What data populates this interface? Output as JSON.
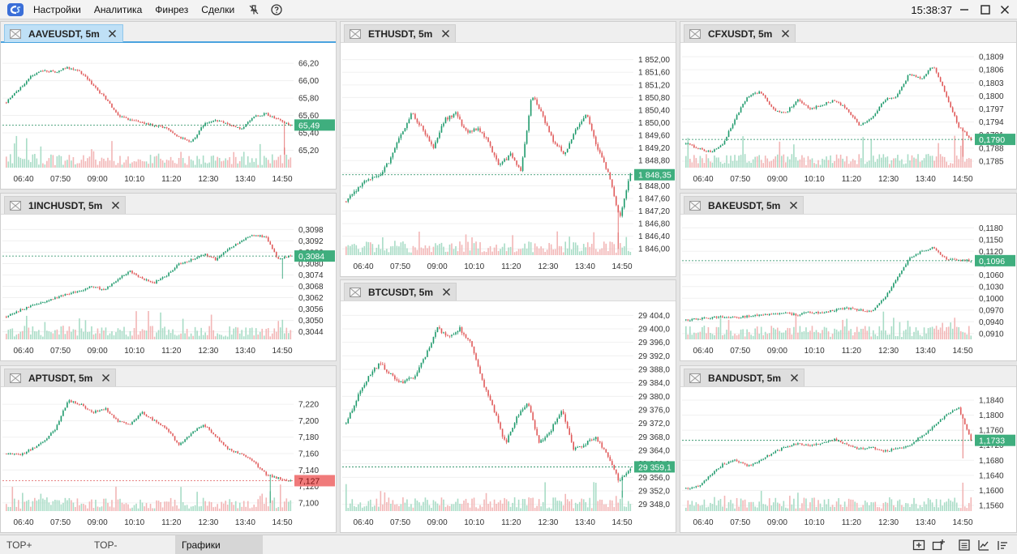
{
  "menu": {
    "items": [
      "Настройки",
      "Аналитика",
      "Финрез",
      "Сделки"
    ],
    "clock": "15:38:37"
  },
  "colors": {
    "up": "#1e9a6c",
    "down": "#e05a5a",
    "vol_up": "#a8dcc6",
    "vol_down": "#f2b6b6",
    "last_up_bg": "#3fae7e",
    "last_down_bg": "#f07a7a",
    "active_tab": "#bfe0f6"
  },
  "time_labels": [
    "06:40",
    "07:50",
    "09:00",
    "10:10",
    "11:20",
    "12:30",
    "13:40",
    "14:50"
  ],
  "panels": [
    {
      "id": "aave",
      "title": "AAVEUSDT, 5m",
      "active": true,
      "chart_data": {
        "type": "candlestick",
        "y_ticks": [
          "66,20",
          "66,00",
          "65,80",
          "65,60",
          "65,40",
          "65,20"
        ],
        "y_tick_values": [
          66.2,
          66.0,
          65.8,
          65.6,
          65.4,
          65.2
        ],
        "ylim": [
          65.0,
          66.35
        ],
        "last_price": "65,49",
        "last_value": 65.49,
        "last_dir": "up",
        "path": [
          65.75,
          65.9,
          66.05,
          66.12,
          66.1,
          66.15,
          66.1,
          65.95,
          65.8,
          65.6,
          65.55,
          65.52,
          65.48,
          65.45,
          65.35,
          65.3,
          65.5,
          65.55,
          65.5,
          65.45,
          65.58,
          65.62,
          65.55,
          65.48
        ],
        "spikes": [
          {
            "at": 0.98,
            "to": 65.15
          }
        ]
      }
    },
    {
      "id": "1inch",
      "title": "1INCHUSDT, 5m",
      "active": false,
      "chart_data": {
        "type": "candlestick",
        "y_ticks": [
          "0,3098",
          "0,3092",
          "0,3086",
          "0,3080",
          "0,3074",
          "0,3068",
          "0,3062",
          "0,3056",
          "0,3050",
          "0,3044"
        ],
        "y_tick_values": [
          0.3098,
          0.3092,
          0.3086,
          0.308,
          0.3074,
          0.3068,
          0.3062,
          0.3056,
          0.305,
          0.3044
        ],
        "ylim": [
          0.304,
          0.3102
        ],
        "last_price": "0,3084",
        "last_value": 0.3084,
        "last_dir": "up",
        "path": [
          0.3052,
          0.3055,
          0.3058,
          0.306,
          0.3062,
          0.3064,
          0.3066,
          0.3068,
          0.3066,
          0.3072,
          0.3076,
          0.3072,
          0.307,
          0.3074,
          0.308,
          0.3082,
          0.3085,
          0.3082,
          0.3088,
          0.3092,
          0.3095,
          0.3094,
          0.3082,
          0.3084
        ],
        "spikes": [
          {
            "at": 0.97,
            "to": 0.3072
          }
        ]
      }
    },
    {
      "id": "apt",
      "title": "APTUSDT, 5m",
      "active": false,
      "chart_data": {
        "type": "candlestick",
        "y_ticks": [
          "7,220",
          "7,200",
          "7,180",
          "7,160",
          "7,140",
          "7,120",
          "7,100"
        ],
        "y_tick_values": [
          7.22,
          7.2,
          7.18,
          7.16,
          7.14,
          7.12,
          7.1
        ],
        "ylim": [
          7.09,
          7.232
        ],
        "last_price": "7,127",
        "last_value": 7.127,
        "last_dir": "down",
        "path": [
          7.16,
          7.158,
          7.165,
          7.175,
          7.19,
          7.225,
          7.22,
          7.21,
          7.215,
          7.2,
          7.195,
          7.21,
          7.2,
          7.19,
          7.17,
          7.185,
          7.195,
          7.18,
          7.165,
          7.16,
          7.15,
          7.135,
          7.13,
          7.127
        ],
        "spikes": [
          {
            "at": 0.93,
            "to": 7.1
          }
        ]
      }
    },
    {
      "id": "eth",
      "title": "ETHUSDT, 5m",
      "active": false,
      "chart_data": {
        "type": "candlestick",
        "y_ticks": [
          "1 852,00",
          "1 851,60",
          "1 851,20",
          "1 850,80",
          "1 850,40",
          "1 850,00",
          "1 849,60",
          "1 849,20",
          "1 848,80",
          "1 848,40",
          "1 848,00",
          "1 847,60",
          "1 847,20",
          "1 846,80",
          "1 846,40",
          "1 846,00"
        ],
        "y_tick_values": [
          1852.0,
          1851.6,
          1851.2,
          1850.8,
          1850.4,
          1850.0,
          1849.6,
          1849.2,
          1848.8,
          1848.4,
          1848.0,
          1847.6,
          1847.2,
          1846.8,
          1846.4,
          1846.0
        ],
        "ylim": [
          1845.8,
          1852.3
        ],
        "last_price": "1 848,35",
        "last_value": 1848.35,
        "last_dir": "up",
        "path": [
          1847.5,
          1847.9,
          1848.2,
          1848.3,
          1848.8,
          1849.6,
          1850.3,
          1849.8,
          1849.2,
          1850.1,
          1850.3,
          1849.7,
          1849.8,
          1849.4,
          1848.6,
          1849.0,
          1848.5,
          1850.9,
          1850.2,
          1849.4,
          1849.0,
          1849.8,
          1850.3,
          1849.2,
          1848.4,
          1847.0,
          1848.35
        ],
        "spikes": [
          {
            "at": 0.96,
            "to": 1846.0
          }
        ]
      }
    },
    {
      "id": "btc",
      "title": "BTCUSDT, 5m",
      "active": false,
      "chart_data": {
        "type": "candlestick",
        "y_ticks": [
          "29 404,0",
          "29 400,0",
          "29 396,0",
          "29 392,0",
          "29 388,0",
          "29 384,0",
          "29 380,0",
          "29 376,0",
          "29 372,0",
          "29 368,0",
          "29 364,0",
          "29 360,0",
          "29 356,0",
          "29 352,0",
          "29 348,0"
        ],
        "y_tick_values": [
          29404,
          29400,
          29396,
          29392,
          29388,
          29384,
          29380,
          29376,
          29372,
          29368,
          29364,
          29360,
          29356,
          29352,
          29348
        ],
        "ylim": [
          29346,
          29406
        ],
        "last_price": "29 359,1",
        "last_value": 29359.1,
        "last_dir": "up",
        "path": [
          29372,
          29380,
          29386,
          29390,
          29386,
          29384,
          29386,
          29392,
          29400,
          29398,
          29400,
          29396,
          29384,
          29376,
          29366,
          29374,
          29378,
          29366,
          29370,
          29376,
          29364,
          29366,
          29368,
          29362,
          29355,
          29359
        ],
        "spikes": [
          {
            "at": 0.97,
            "to": 29350
          }
        ]
      }
    },
    {
      "id": "cfx",
      "title": "CFXUSDT, 5m",
      "active": false,
      "chart_data": {
        "type": "candlestick",
        "y_ticks": [
          "0,1809",
          "0,1806",
          "0,1803",
          "0,1800",
          "0,1797",
          "0,1794",
          "0,1791",
          "0,1788",
          "0,1785"
        ],
        "y_tick_values": [
          0.1809,
          0.1806,
          0.1803,
          0.18,
          0.1797,
          0.1794,
          0.1791,
          0.1788,
          0.1785
        ],
        "ylim": [
          0.17835,
          0.18105
        ],
        "last_price": "0,1790",
        "last_value": 0.179,
        "last_dir": "up",
        "path": [
          0.1789,
          0.1788,
          0.1787,
          0.1789,
          0.1795,
          0.18,
          0.1801,
          0.1797,
          0.1796,
          0.1799,
          0.1797,
          0.1798,
          0.1799,
          0.1797,
          0.1793,
          0.1795,
          0.1799,
          0.18,
          0.1805,
          0.1804,
          0.1807,
          0.18,
          0.1793,
          0.179
        ],
        "spikes": [
          {
            "at": 0.97,
            "to": 0.1786
          }
        ]
      }
    },
    {
      "id": "bake",
      "title": "BAKEUSDT, 5m",
      "active": false,
      "chart_data": {
        "type": "candlestick",
        "y_ticks": [
          "0,1180",
          "0,1150",
          "0,1120",
          "0,1090",
          "0,1060",
          "0,1030",
          "0,1000",
          "0,0970",
          "0,0940",
          "0,0910"
        ],
        "y_tick_values": [
          0.118,
          0.115,
          0.112,
          0.109,
          0.106,
          0.103,
          0.1,
          0.097,
          0.094,
          0.091
        ],
        "ylim": [
          0.0895,
          0.1195
        ],
        "last_price": "0,1096",
        "last_value": 0.1096,
        "last_dir": "up",
        "path": [
          0.0945,
          0.0948,
          0.095,
          0.0953,
          0.095,
          0.0955,
          0.0958,
          0.096,
          0.0962,
          0.0958,
          0.0965,
          0.0962,
          0.097,
          0.0975,
          0.097,
          0.0965,
          0.1,
          0.105,
          0.11,
          0.112,
          0.113,
          0.11,
          0.1098,
          0.1096
        ],
        "spikes": []
      }
    },
    {
      "id": "band",
      "title": "BANDUSDT, 5m",
      "active": false,
      "chart_data": {
        "type": "candlestick",
        "y_ticks": [
          "1,1840",
          "1,1800",
          "1,1760",
          "1,1720",
          "1,1680",
          "1,1640",
          "1,1600",
          "1,1560"
        ],
        "y_tick_values": [
          1.184,
          1.18,
          1.176,
          1.172,
          1.168,
          1.164,
          1.16,
          1.156
        ],
        "ylim": [
          1.1545,
          1.1855
        ],
        "last_price": "1,1733",
        "last_value": 1.1733,
        "last_dir": "up",
        "path": [
          1.1605,
          1.161,
          1.164,
          1.167,
          1.168,
          1.1665,
          1.168,
          1.17,
          1.1715,
          1.1725,
          1.172,
          1.1725,
          1.1735,
          1.172,
          1.171,
          1.1715,
          1.1705,
          1.171,
          1.172,
          1.1745,
          1.177,
          1.18,
          1.182,
          1.1733
        ],
        "spikes": [
          {
            "at": 0.97,
            "to": 1.1685
          }
        ]
      }
    }
  ],
  "bottom": {
    "tabs": [
      "TOP+",
      "TOP-",
      "Графики"
    ],
    "active_tab": 2
  }
}
